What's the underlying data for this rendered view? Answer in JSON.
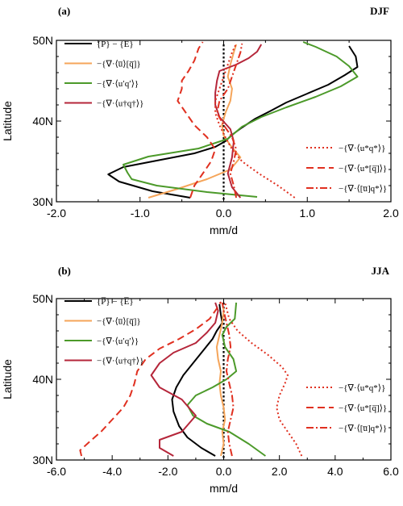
{
  "chart_data": [
    {
      "type": "line",
      "panel_label": "(a)",
      "season": "DJF",
      "xlabel": "mm/d",
      "ylabel": "Latitude",
      "xlim": [
        -2.0,
        2.0
      ],
      "ylim": [
        30,
        50
      ],
      "xticks": [
        "-2.0",
        "-1.0",
        "0.0",
        "1.0",
        "2.0"
      ],
      "yticks": [
        "30N",
        "40N",
        "50N"
      ],
      "series": [
        {
          "name": "{P̅} − {E̅}",
          "style": "solid",
          "color": "#000000",
          "points": [
            [
              -0.4,
              30.5
            ],
            [
              -0.85,
              31.3
            ],
            [
              -1.25,
              32.5
            ],
            [
              -1.38,
              33.4
            ],
            [
              -1.2,
              34.3
            ],
            [
              -0.75,
              35.2
            ],
            [
              -0.35,
              36.0
            ],
            [
              -0.1,
              36.8
            ],
            [
              0.02,
              37.5
            ],
            [
              0.1,
              38.3
            ],
            [
              0.22,
              39.2
            ],
            [
              0.38,
              40.3
            ],
            [
              0.55,
              41.2
            ],
            [
              0.75,
              42.3
            ],
            [
              1.0,
              43.4
            ],
            [
              1.25,
              44.5
            ],
            [
              1.45,
              45.7
            ],
            [
              1.6,
              46.7
            ],
            [
              1.58,
              48.0
            ],
            [
              1.5,
              49.3
            ]
          ]
        },
        {
          "name": "−{∇·⟨u̅⟩[q̅]}",
          "style": "solid",
          "color": "#f5a55a",
          "points": [
            [
              -0.9,
              30.5
            ],
            [
              -0.55,
              31.6
            ],
            [
              -0.2,
              32.8
            ],
            [
              0.08,
              34.0
            ],
            [
              0.2,
              35.5
            ],
            [
              0.08,
              37.0
            ],
            [
              0.0,
              38.2
            ],
            [
              -0.02,
              39.5
            ],
            [
              0.02,
              41.0
            ],
            [
              0.08,
              42.5
            ],
            [
              0.1,
              44.0
            ],
            [
              0.05,
              45.5
            ],
            [
              0.08,
              47.0
            ],
            [
              0.12,
              48.5
            ],
            [
              0.15,
              49.5
            ]
          ]
        },
        {
          "name": "−{∇·⟨u′q′⟩}",
          "style": "solid",
          "color": "#4c9a2a",
          "points": [
            [
              0.4,
              30.6
            ],
            [
              -0.2,
              31.2
            ],
            [
              -0.8,
              32.0
            ],
            [
              -1.1,
              32.8
            ],
            [
              -1.15,
              33.6
            ],
            [
              -1.2,
              34.6
            ],
            [
              -0.9,
              35.6
            ],
            [
              -0.3,
              36.6
            ],
            [
              0.05,
              37.8
            ],
            [
              0.22,
              39.3
            ],
            [
              0.45,
              40.5
            ],
            [
              0.75,
              41.7
            ],
            [
              1.1,
              43.0
            ],
            [
              1.4,
              44.3
            ],
            [
              1.6,
              45.5
            ],
            [
              1.5,
              46.8
            ],
            [
              1.35,
              48.0
            ],
            [
              1.1,
              49.2
            ],
            [
              0.95,
              49.8
            ]
          ]
        },
        {
          "name": "−{∇·⟨u†q†⟩}",
          "style": "solid",
          "color": "#b5263a",
          "points": [
            [
              0.2,
              30.5
            ],
            [
              0.1,
              31.8
            ],
            [
              0.05,
              33.5
            ],
            [
              0.1,
              35.5
            ],
            [
              0.12,
              37.5
            ],
            [
              0.08,
              39.0
            ],
            [
              -0.05,
              40.5
            ],
            [
              -0.1,
              42.0
            ],
            [
              -0.1,
              43.5
            ],
            [
              -0.08,
              45.0
            ],
            [
              -0.05,
              46.2
            ],
            [
              0.15,
              47.0
            ],
            [
              0.3,
              47.8
            ],
            [
              0.4,
              48.6
            ],
            [
              0.45,
              49.5
            ]
          ]
        },
        {
          "name": "−{∇·⟨u*q*⟩}",
          "style": "dot",
          "color": "#e03020",
          "points": [
            [
              0.85,
              30.5
            ],
            [
              0.65,
              32.0
            ],
            [
              0.42,
              33.5
            ],
            [
              0.22,
              35.0
            ],
            [
              0.1,
              36.5
            ],
            [
              0.02,
              38.0
            ],
            [
              -0.05,
              39.5
            ],
            [
              -0.1,
              41.0
            ],
            [
              -0.1,
              42.5
            ],
            [
              -0.05,
              44.0
            ],
            [
              0.0,
              45.5
            ],
            [
              0.05,
              47.0
            ],
            [
              0.1,
              48.5
            ],
            [
              0.15,
              49.6
            ]
          ]
        },
        {
          "name": "−{∇·⟨u*[q̅]⟩}",
          "style": "dash",
          "color": "#e03020",
          "points": [
            [
              -0.4,
              30.5
            ],
            [
              -0.35,
              32.0
            ],
            [
              -0.25,
              33.5
            ],
            [
              -0.15,
              35.0
            ],
            [
              -0.1,
              36.5
            ],
            [
              -0.2,
              38.0
            ],
            [
              -0.35,
              39.5
            ],
            [
              -0.45,
              41.0
            ],
            [
              -0.55,
              42.5
            ],
            [
              -0.5,
              44.0
            ],
            [
              -0.5,
              45.0
            ],
            [
              -0.42,
              46.2
            ],
            [
              -0.35,
              47.5
            ],
            [
              -0.3,
              49.0
            ],
            [
              -0.25,
              49.8
            ]
          ]
        },
        {
          "name": "−{∇·⟨[u̅]q*⟩}",
          "style": "dashdot",
          "color": "#e03020",
          "points": [
            [
              0.15,
              30.5
            ],
            [
              0.12,
              32.0
            ],
            [
              0.08,
              33.5
            ],
            [
              0.12,
              35.0
            ],
            [
              0.15,
              36.5
            ],
            [
              0.1,
              38.0
            ],
            [
              0.0,
              39.5
            ],
            [
              -0.08,
              41.0
            ],
            [
              -0.05,
              42.5
            ],
            [
              0.05,
              44.0
            ],
            [
              0.1,
              45.5
            ],
            [
              0.15,
              47.0
            ],
            [
              0.2,
              48.5
            ],
            [
              0.22,
              49.6
            ]
          ]
        }
      ]
    },
    {
      "type": "line",
      "panel_label": "(b)",
      "season": "JJA",
      "xlabel": "mm/d",
      "ylabel": "Latitude",
      "xlim": [
        -6.0,
        6.0
      ],
      "ylim": [
        30,
        50
      ],
      "xticks": [
        "-6.0",
        "-4.0",
        "-2.0",
        "0.0",
        "2.0",
        "4.0",
        "6.0"
      ],
      "yticks": [
        "30N",
        "40N",
        "50N"
      ],
      "series": [
        {
          "name": "{P̅} − {E̅}",
          "style": "solid",
          "color": "#000000",
          "points": [
            [
              -0.3,
              30.5
            ],
            [
              -0.8,
              31.5
            ],
            [
              -1.3,
              32.8
            ],
            [
              -1.6,
              34.2
            ],
            [
              -1.8,
              36.0
            ],
            [
              -1.85,
              37.5
            ],
            [
              -1.7,
              39.0
            ],
            [
              -1.45,
              40.5
            ],
            [
              -1.1,
              42.0
            ],
            [
              -0.75,
              43.5
            ],
            [
              -0.4,
              45.0
            ],
            [
              -0.25,
              46.0
            ],
            [
              -0.05,
              47.0
            ],
            [
              -0.1,
              48.0
            ],
            [
              -0.15,
              49.3
            ]
          ]
        },
        {
          "name": "−{∇·⟨u̅⟩[q̅]}",
          "style": "solid",
          "color": "#f5a55a",
          "points": [
            [
              -0.1,
              30.5
            ],
            [
              0.0,
              32.0
            ],
            [
              -0.05,
              33.5
            ],
            [
              0.05,
              35.0
            ],
            [
              0.0,
              36.5
            ],
            [
              -0.1,
              38.0
            ],
            [
              -0.15,
              39.5
            ],
            [
              -0.1,
              41.0
            ],
            [
              -0.2,
              42.5
            ],
            [
              -0.25,
              44.0
            ],
            [
              -0.15,
              45.5
            ],
            [
              -0.05,
              47.0
            ],
            [
              0.0,
              48.5
            ],
            [
              -0.05,
              49.5
            ]
          ]
        },
        {
          "name": "−{∇·⟨u′q′⟩}",
          "style": "solid",
          "color": "#4c9a2a",
          "points": [
            [
              1.5,
              30.5
            ],
            [
              0.9,
              32.0
            ],
            [
              0.2,
              33.5
            ],
            [
              -0.6,
              34.5
            ],
            [
              -1.1,
              35.5
            ],
            [
              -1.3,
              36.8
            ],
            [
              -1.0,
              38.0
            ],
            [
              -0.4,
              39.0
            ],
            [
              0.1,
              40.0
            ],
            [
              0.45,
              41.0
            ],
            [
              0.35,
              42.5
            ],
            [
              0.05,
              44.0
            ],
            [
              -0.05,
              45.5
            ],
            [
              0.1,
              46.5
            ],
            [
              0.4,
              47.5
            ],
            [
              0.45,
              49.5
            ]
          ]
        },
        {
          "name": "−{∇·⟨u†q†⟩}",
          "style": "solid",
          "color": "#b5263a",
          "points": [
            [
              -1.8,
              30.5
            ],
            [
              -2.3,
              31.5
            ],
            [
              -2.3,
              32.5
            ],
            [
              -1.5,
              33.5
            ],
            [
              -1.0,
              35.5
            ],
            [
              -1.5,
              37.5
            ],
            [
              -2.3,
              39.0
            ],
            [
              -2.6,
              40.5
            ],
            [
              -2.3,
              42.0
            ],
            [
              -1.8,
              43.3
            ],
            [
              -1.0,
              44.5
            ],
            [
              -0.6,
              45.8
            ],
            [
              -0.3,
              47.0
            ],
            [
              -0.2,
              48.5
            ],
            [
              -0.3,
              49.5
            ]
          ]
        },
        {
          "name": "−{∇·⟨u*q*⟩}",
          "style": "dot",
          "color": "#e03020",
          "points": [
            [
              2.8,
              30.5
            ],
            [
              2.6,
              32.0
            ],
            [
              2.3,
              33.5
            ],
            [
              2.0,
              35.0
            ],
            [
              1.9,
              36.5
            ],
            [
              2.0,
              38.0
            ],
            [
              2.2,
              39.5
            ],
            [
              2.3,
              40.5
            ],
            [
              2.1,
              41.5
            ],
            [
              1.6,
              43.0
            ],
            [
              1.0,
              44.5
            ],
            [
              0.5,
              46.0
            ],
            [
              0.2,
              47.5
            ],
            [
              0.05,
              49.5
            ]
          ]
        },
        {
          "name": "−{∇·⟨u*[q̅]⟩}",
          "style": "dash",
          "color": "#e03020",
          "points": [
            [
              -5.1,
              30.5
            ],
            [
              -5.15,
              31.2
            ],
            [
              -4.8,
              32.3
            ],
            [
              -4.4,
              33.5
            ],
            [
              -4.0,
              35.0
            ],
            [
              -3.6,
              36.5
            ],
            [
              -3.35,
              38.0
            ],
            [
              -3.2,
              39.5
            ],
            [
              -3.1,
              41.0
            ],
            [
              -2.8,
              42.5
            ],
            [
              -2.3,
              43.8
            ],
            [
              -1.6,
              45.0
            ],
            [
              -1.0,
              46.2
            ],
            [
              -0.5,
              47.5
            ],
            [
              -0.2,
              49.0
            ],
            [
              -0.1,
              49.6
            ]
          ]
        },
        {
          "name": "−{∇·⟨[u̅]q*⟩}",
          "style": "dashdot",
          "color": "#e03020",
          "points": [
            [
              0.3,
              30.5
            ],
            [
              0.2,
              32.0
            ],
            [
              0.15,
              33.5
            ],
            [
              0.25,
              35.0
            ],
            [
              0.35,
              36.5
            ],
            [
              0.3,
              38.0
            ],
            [
              0.2,
              39.5
            ],
            [
              0.1,
              41.0
            ],
            [
              0.15,
              42.5
            ],
            [
              0.25,
              44.0
            ],
            [
              0.2,
              45.5
            ],
            [
              0.1,
              47.0
            ],
            [
              0.0,
              48.5
            ],
            [
              -0.05,
              49.5
            ]
          ]
        }
      ]
    }
  ]
}
